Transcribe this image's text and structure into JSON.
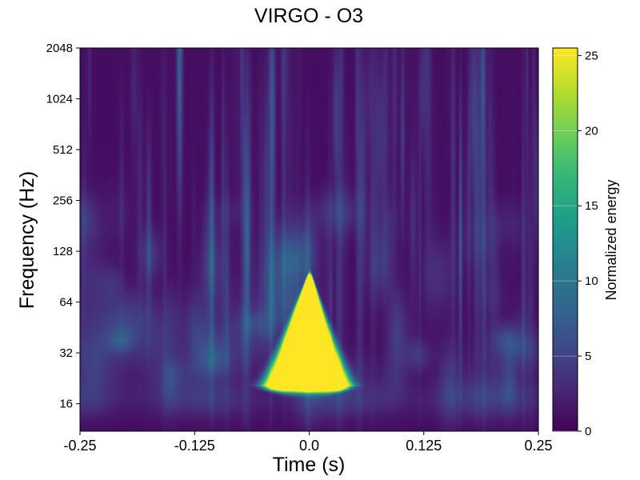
{
  "chart_data": {
    "type": "heatmap",
    "title": "VIRGO - O3",
    "xlabel": "Time (s)",
    "ylabel": "Frequency (Hz)",
    "colorbar_label": "Normalized energy",
    "xlim": [
      -0.25,
      0.25
    ],
    "ylim": [
      11,
      2048
    ],
    "yscale": "log2",
    "x_ticks": [
      -0.25,
      -0.125,
      0.0,
      0.125,
      0.25
    ],
    "x_tick_labels": [
      "-0.25",
      "-0.125",
      "0.0",
      "0.125",
      "0.25"
    ],
    "y_ticks": [
      16,
      32,
      64,
      128,
      256,
      512,
      1024,
      2048
    ],
    "y_tick_labels": [
      "16",
      "32",
      "64",
      "128",
      "256",
      "512",
      "1024",
      "2048"
    ],
    "colorbar_range": [
      0,
      25.5
    ],
    "colorbar_ticks": [
      0,
      5,
      10,
      15,
      20,
      25
    ],
    "colorbar_tick_labels": [
      "0",
      "5",
      "10",
      "15",
      "20",
      "25"
    ],
    "colormap": "viridis",
    "colormap_stops": [
      "#440154",
      "#482878",
      "#3e4989",
      "#31688e",
      "#26828e",
      "#1f9e89",
      "#35b779",
      "#6ece58",
      "#b5de2b",
      "#fde725"
    ],
    "grid": false,
    "features": [
      {
        "description": "saturated chirp-like blob",
        "time_center": 0.0,
        "time_width": 0.07,
        "freq_low": 20,
        "freq_high": 90,
        "peak_energy": 25.5
      },
      {
        "description": "faint low-frequency band",
        "freq": 16,
        "energy": 4
      },
      {
        "description": "faint side blob",
        "time_center": -0.205,
        "freq": 38,
        "energy": 5
      },
      {
        "description": "faint side blob",
        "time_center": 0.215,
        "freq": 40,
        "energy": 5
      }
    ]
  }
}
